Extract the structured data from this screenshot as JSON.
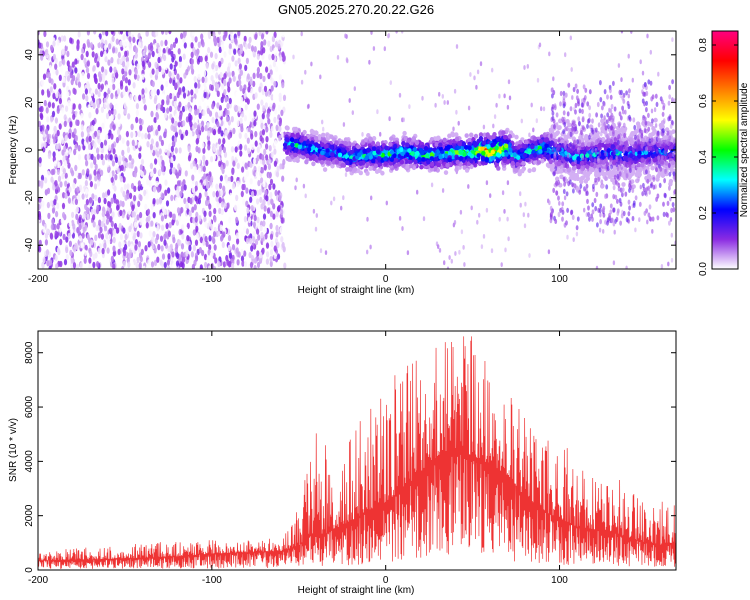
{
  "title": "GN05.2025.270.20.22.G26",
  "chart_data": [
    {
      "type": "heatmap",
      "xlabel": "Height of straight line (km)",
      "ylabel": "Frequency (Hz)",
      "xlim": [
        -200,
        167
      ],
      "ylim": [
        -50,
        50
      ],
      "x_ticks": [
        -200,
        -100,
        0,
        100
      ],
      "y_ticks": [
        -40,
        -20,
        0,
        20,
        40
      ],
      "colorbar": {
        "label": "Normalized spectral amplitude",
        "range": [
          0,
          0.85
        ],
        "ticks": [
          0.0,
          0.2,
          0.4,
          0.6,
          0.8
        ],
        "colors": [
          "#ffffff",
          "#8a2be2",
          "#0000ff",
          "#00ffff",
          "#00ff00",
          "#ffff00",
          "#ff8000",
          "#ff0000",
          "#ff0080"
        ]
      },
      "noise_region_x": [
        -200,
        -58
      ],
      "signal_track": {
        "x": [
          -58,
          -50,
          -40,
          -30,
          -20,
          -10,
          0,
          10,
          20,
          30,
          40,
          50,
          55,
          60,
          65,
          70,
          75,
          80,
          90,
          100,
          110,
          120,
          130,
          140,
          150,
          160,
          167
        ],
        "freq": [
          3,
          2,
          0,
          -1,
          -3,
          -2,
          -2,
          -1,
          -2,
          -2,
          -1,
          -1,
          0,
          -1,
          0,
          1,
          -3,
          -1,
          1,
          -1,
          -3,
          -2,
          -1,
          -2,
          -1,
          -1,
          -1
        ],
        "peak": [
          0.35,
          0.42,
          0.38,
          0.35,
          0.4,
          0.42,
          0.45,
          0.45,
          0.5,
          0.45,
          0.5,
          0.55,
          0.72,
          0.8,
          0.85,
          0.6,
          0.4,
          0.4,
          0.45,
          0.4,
          0.38,
          0.36,
          0.35,
          0.35,
          0.32,
          0.3,
          0.3
        ]
      }
    },
    {
      "type": "line",
      "xlabel": "Height of straight line (km)",
      "ylabel": "SNR (10 * v/v)",
      "xlim": [
        -200,
        167
      ],
      "ylim": [
        0,
        8800
      ],
      "x_ticks": [
        -200,
        -100,
        0,
        100
      ],
      "y_ticks": [
        0,
        2000,
        4000,
        6000,
        8000
      ],
      "color": "#ee3333",
      "envelope": {
        "x": [
          -200,
          -180,
          -160,
          -140,
          -120,
          -100,
          -80,
          -60,
          -50,
          -45,
          -40,
          -35,
          -30,
          -20,
          -10,
          0,
          10,
          20,
          30,
          40,
          50,
          60,
          70,
          80,
          90,
          100,
          110,
          120,
          130,
          140,
          150,
          160,
          167
        ],
        "base": [
          350,
          380,
          400,
          450,
          500,
          600,
          650,
          700,
          900,
          1200,
          1400,
          1300,
          1500,
          1800,
          2200,
          2500,
          3000,
          3600,
          4200,
          4500,
          4200,
          3900,
          3500,
          2700,
          2200,
          1900,
          1600,
          1500,
          1400,
          1200,
          1000,
          900,
          1000
        ],
        "peak": [
          700,
          800,
          900,
          1000,
          1050,
          1100,
          1150,
          1200,
          2800,
          3800,
          5800,
          4800,
          4200,
          5000,
          6300,
          7000,
          7500,
          8000,
          8400,
          8800,
          8600,
          7500,
          6500,
          5800,
          5200,
          4800,
          4300,
          3900,
          3500,
          3200,
          2800,
          2500,
          2800
        ]
      }
    }
  ]
}
